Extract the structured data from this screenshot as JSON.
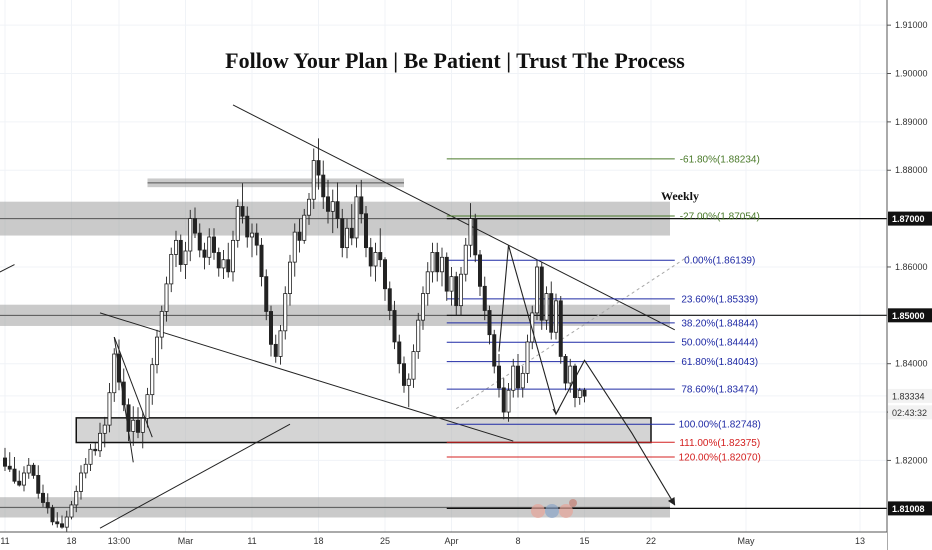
{
  "chart_data": {
    "type": "candlestick",
    "title": "Follow Your Plan | Be Patient | Trust The Process",
    "timeframe_label": "Weekly",
    "ylim": [
      1.8052,
      1.9152
    ],
    "y_ticks": [
      "1.91000",
      "1.90000",
      "1.89000",
      "1.88000",
      "1.87000",
      "1.86000",
      "1.85000",
      "1.84000",
      "1.83334",
      "1.83000",
      "1.82000",
      "1.81008"
    ],
    "price_badges": [
      {
        "label": "1.87000",
        "value": 1.87,
        "dark": true
      },
      {
        "label": "1.85000",
        "value": 1.85,
        "dark": true
      },
      {
        "label": "1.81008",
        "value": 1.81008,
        "dark": true
      },
      {
        "label": "1.83334",
        "value": 1.83334,
        "dark": false
      },
      {
        "label": "02:43:32",
        "value": 1.82994,
        "dark": false
      }
    ],
    "x_ticks": [
      {
        "label": "11",
        "t": 0
      },
      {
        "label": "18",
        "t": 7
      },
      {
        "label": "13:00",
        "t": 12
      },
      {
        "label": "Mar",
        "t": 19
      },
      {
        "label": "11",
        "t": 26
      },
      {
        "label": "18",
        "t": 33
      },
      {
        "label": "25",
        "t": 40
      },
      {
        "label": "Apr",
        "t": 47
      },
      {
        "label": "8",
        "t": 54
      },
      {
        "label": "15",
        "t": 61
      },
      {
        "label": "22",
        "t": 68
      },
      {
        "label": "May",
        "t": 78
      },
      {
        "label": "13",
        "t": 90
      }
    ],
    "x_range": [
      0,
      91
    ],
    "zones": [
      {
        "t0": -2,
        "t1": 70,
        "y0": 1.8735,
        "y1": 1.8665,
        "style": "gray"
      },
      {
        "t0": 15,
        "t1": 42,
        "y0": 1.8783,
        "y1": 1.8765,
        "style": "gray"
      },
      {
        "t0": -2,
        "t1": 70,
        "y0": 1.8522,
        "y1": 1.8478,
        "style": "gray"
      },
      {
        "t0": 7.5,
        "t1": 68,
        "y0": 1.8288,
        "y1": 1.8237,
        "style": "boxed"
      },
      {
        "t0": -2,
        "t1": 70,
        "y0": 1.8124,
        "y1": 1.8082,
        "style": "gray"
      }
    ],
    "fib_levels": [
      {
        "label": "-61.80%(1.88234)",
        "value": 1.88234,
        "color": "#4a7a2a"
      },
      {
        "label": "-27.00%(1.87054)",
        "value": 1.87054,
        "color": "#4a7a2a"
      },
      {
        "label": "0.00%(1.86139)",
        "value": 1.86139,
        "color": "#1f2aa5"
      },
      {
        "label": "23.60%(1.85339)",
        "value": 1.85339,
        "color": "#1f2aa5"
      },
      {
        "label": "38.20%(1.84844)",
        "value": 1.84844,
        "color": "#1f2aa5"
      },
      {
        "label": "50.00%(1.84444)",
        "value": 1.84444,
        "color": "#1f2aa5"
      },
      {
        "label": "61.80%(1.84043)",
        "value": 1.84043,
        "color": "#1f2aa5"
      },
      {
        "label": "78.60%(1.83474)",
        "value": 1.83474,
        "color": "#1f2aa5"
      },
      {
        "label": "100.00%(1.82748)",
        "value": 1.82748,
        "color": "#1f2aa5"
      },
      {
        "label": "111.00%(1.82375)",
        "value": 1.82375,
        "color": "#d42020"
      },
      {
        "label": "120.00%(1.82070)",
        "value": 1.8207,
        "color": "#d42020"
      }
    ],
    "fib_span": [
      46.5,
      70.5
    ],
    "lines": [
      {
        "t0": 24,
        "y0": 1.8935,
        "t1": 70.5,
        "y1": 1.847
      },
      {
        "t0": 10,
        "y0": 1.8505,
        "t1": 53.5,
        "y1": 1.824
      },
      {
        "t0": 10,
        "y0": 1.806,
        "t1": 30,
        "y1": 1.8275
      },
      {
        "t0": 11.5,
        "y0": 1.8455,
        "t1": 15.5,
        "y1": 1.8248
      },
      {
        "t0": 11.5,
        "y0": 1.8455,
        "t1": 13.5,
        "y1": 1.8196
      },
      {
        "t0": -2,
        "y0": 1.8575,
        "t1": 1,
        "y1": 1.8605
      }
    ],
    "dashed_lines": [
      {
        "t0": 47.5,
        "y0": 1.8307,
        "t1": 72,
        "y1": 1.8623
      }
    ],
    "projection": [
      {
        "t": 52,
        "y": 1.8425
      },
      {
        "t": 53,
        "y": 1.8645
      },
      {
        "t": 58,
        "y": 1.8296
      },
      {
        "t": 61,
        "y": 1.8407
      },
      {
        "t": 66,
        "y": 1.8256
      },
      {
        "t": 70.5,
        "y": 1.8108
      }
    ],
    "candles": [
      [
        0.0,
        1.8205,
        1.8226,
        1.8178,
        1.8188
      ],
      [
        0.5,
        1.8188,
        1.8217,
        1.8176,
        1.8182
      ],
      [
        1.0,
        1.8182,
        1.8207,
        1.8152,
        1.8157
      ],
      [
        1.5,
        1.8157,
        1.8179,
        1.8146,
        1.8149
      ],
      [
        2.0,
        1.8149,
        1.8188,
        1.8136,
        1.8174
      ],
      [
        2.5,
        1.8174,
        1.8205,
        1.8162,
        1.819
      ],
      [
        3.0,
        1.819,
        1.8195,
        1.8162,
        1.8169
      ],
      [
        3.5,
        1.8169,
        1.819,
        1.8121,
        1.8132
      ],
      [
        4.0,
        1.8132,
        1.815,
        1.8104,
        1.8113
      ],
      [
        4.5,
        1.8113,
        1.8132,
        1.809,
        1.8102
      ],
      [
        5.0,
        1.8102,
        1.8108,
        1.8066,
        1.8073
      ],
      [
        5.5,
        1.8073,
        1.8093,
        1.8061,
        1.8069
      ],
      [
        6.0,
        1.8069,
        1.8086,
        1.8059,
        1.8062
      ],
      [
        6.5,
        1.8062,
        1.8096,
        1.8053,
        1.8083
      ],
      [
        7.0,
        1.8083,
        1.8116,
        1.8078,
        1.8108
      ],
      [
        7.5,
        1.8108,
        1.8148,
        1.8093,
        1.8136
      ],
      [
        8.0,
        1.8136,
        1.819,
        1.8119,
        1.8174
      ],
      [
        8.5,
        1.8174,
        1.8205,
        1.8163,
        1.8192
      ],
      [
        9.0,
        1.8192,
        1.8234,
        1.8178,
        1.8223
      ],
      [
        9.5,
        1.8223,
        1.8237,
        1.821,
        1.822
      ],
      [
        10.0,
        1.822,
        1.8278,
        1.8207,
        1.8256
      ],
      [
        10.5,
        1.8256,
        1.829,
        1.8227,
        1.8273
      ],
      [
        11.0,
        1.8273,
        1.836,
        1.8258,
        1.834
      ],
      [
        11.5,
        1.834,
        1.8432,
        1.8321,
        1.842
      ],
      [
        12.0,
        1.842,
        1.845,
        1.8345,
        1.8362
      ],
      [
        12.5,
        1.8362,
        1.839,
        1.8302,
        1.8315
      ],
      [
        13.0,
        1.8315,
        1.8328,
        1.824,
        1.826
      ],
      [
        13.5,
        1.826,
        1.8312,
        1.823,
        1.8283
      ],
      [
        14.0,
        1.8283,
        1.831,
        1.8246,
        1.8258
      ],
      [
        14.5,
        1.8258,
        1.83,
        1.8225,
        1.8287
      ],
      [
        15.0,
        1.8287,
        1.835,
        1.8268,
        1.8336
      ],
      [
        15.5,
        1.8336,
        1.8412,
        1.8315,
        1.8398
      ],
      [
        16.0,
        1.8398,
        1.847,
        1.838,
        1.8455
      ],
      [
        16.5,
        1.8455,
        1.852,
        1.843,
        1.8508
      ],
      [
        17.0,
        1.8508,
        1.858,
        1.8487,
        1.8565
      ],
      [
        17.5,
        1.8565,
        1.864,
        1.8548,
        1.8626
      ],
      [
        18.0,
        1.8626,
        1.8675,
        1.86,
        1.8655
      ],
      [
        18.5,
        1.8655,
        1.8667,
        1.859,
        1.8605
      ],
      [
        19.0,
        1.8605,
        1.8652,
        1.8575,
        1.8633
      ],
      [
        19.5,
        1.8633,
        1.8718,
        1.8612,
        1.87
      ],
      [
        20.0,
        1.87,
        1.8723,
        1.866,
        1.867
      ],
      [
        20.5,
        1.867,
        1.869,
        1.862,
        1.8635
      ],
      [
        21.0,
        1.8635,
        1.865,
        1.8595,
        1.862
      ],
      [
        21.5,
        1.862,
        1.868,
        1.8604,
        1.8662
      ],
      [
        22.0,
        1.8662,
        1.868,
        1.8615,
        1.863
      ],
      [
        22.5,
        1.863,
        1.864,
        1.858,
        1.8598
      ],
      [
        23.0,
        1.8598,
        1.8635,
        1.8575,
        1.8615
      ],
      [
        23.5,
        1.8615,
        1.865,
        1.8578,
        1.859
      ],
      [
        24.0,
        1.859,
        1.8675,
        1.857,
        1.8655
      ],
      [
        24.5,
        1.8655,
        1.874,
        1.864,
        1.8725
      ],
      [
        25.0,
        1.8725,
        1.8773,
        1.869,
        1.8705
      ],
      [
        25.5,
        1.8705,
        1.8725,
        1.864,
        1.8662
      ],
      [
        26.0,
        1.8662,
        1.869,
        1.862,
        1.867
      ],
      [
        26.5,
        1.867,
        1.869,
        1.8624,
        1.8645
      ],
      [
        27.0,
        1.8645,
        1.866,
        1.856,
        1.858
      ],
      [
        27.5,
        1.858,
        1.8595,
        1.849,
        1.8508
      ],
      [
        28.0,
        1.8508,
        1.852,
        1.8415,
        1.844
      ],
      [
        28.5,
        1.844,
        1.846,
        1.8402,
        1.8415
      ],
      [
        29.0,
        1.8415,
        1.848,
        1.8398,
        1.8468
      ],
      [
        29.5,
        1.8468,
        1.856,
        1.845,
        1.8545
      ],
      [
        30.0,
        1.8545,
        1.8625,
        1.852,
        1.861
      ],
      [
        30.5,
        1.861,
        1.869,
        1.858,
        1.8672
      ],
      [
        31.0,
        1.8672,
        1.87,
        1.863,
        1.8655
      ],
      [
        31.5,
        1.8655,
        1.872,
        1.8648,
        1.8707
      ],
      [
        32.0,
        1.8707,
        1.8753,
        1.8687,
        1.874
      ],
      [
        32.5,
        1.874,
        1.8845,
        1.872,
        1.882
      ],
      [
        33.0,
        1.882,
        1.8866,
        1.876,
        1.879
      ],
      [
        33.5,
        1.879,
        1.882,
        1.872,
        1.8745
      ],
      [
        34.0,
        1.8745,
        1.878,
        1.869,
        1.8715
      ],
      [
        34.5,
        1.8715,
        1.876,
        1.867,
        1.8735
      ],
      [
        35.0,
        1.8735,
        1.8775,
        1.868,
        1.87
      ],
      [
        35.5,
        1.87,
        1.872,
        1.862,
        1.864
      ],
      [
        36.0,
        1.864,
        1.87,
        1.8618,
        1.868
      ],
      [
        36.5,
        1.868,
        1.873,
        1.8645,
        1.866
      ],
      [
        37.0,
        1.866,
        1.877,
        1.864,
        1.8745
      ],
      [
        37.5,
        1.8745,
        1.878,
        1.869,
        1.871
      ],
      [
        38.0,
        1.871,
        1.8726,
        1.862,
        1.864
      ],
      [
        38.5,
        1.864,
        1.866,
        1.858,
        1.8602
      ],
      [
        39.0,
        1.8602,
        1.865,
        1.857,
        1.863
      ],
      [
        39.5,
        1.863,
        1.868,
        1.86,
        1.8615
      ],
      [
        40.0,
        1.8615,
        1.862,
        1.853,
        1.8555
      ],
      [
        40.5,
        1.8555,
        1.857,
        1.849,
        1.851
      ],
      [
        41.0,
        1.851,
        1.853,
        1.843,
        1.8445
      ],
      [
        41.5,
        1.8445,
        1.846,
        1.838,
        1.84
      ],
      [
        42.0,
        1.84,
        1.8415,
        1.834,
        1.8355
      ],
      [
        42.5,
        1.8355,
        1.838,
        1.831,
        1.8368
      ],
      [
        43.0,
        1.8368,
        1.844,
        1.835,
        1.8425
      ],
      [
        43.5,
        1.8425,
        1.8505,
        1.841,
        1.849
      ],
      [
        44.0,
        1.849,
        1.856,
        1.847,
        1.8545
      ],
      [
        44.5,
        1.8545,
        1.861,
        1.852,
        1.859
      ],
      [
        45.0,
        1.859,
        1.865,
        1.8568,
        1.863
      ],
      [
        45.5,
        1.863,
        1.865,
        1.857,
        1.859
      ],
      [
        46.0,
        1.859,
        1.864,
        1.856,
        1.862
      ],
      [
        46.5,
        1.862,
        1.863,
        1.853,
        1.855
      ],
      [
        47.0,
        1.855,
        1.86,
        1.852,
        1.858
      ],
      [
        47.5,
        1.858,
        1.859,
        1.85,
        1.852
      ],
      [
        48.0,
        1.852,
        1.86,
        1.85,
        1.8585
      ],
      [
        48.5,
        1.8585,
        1.866,
        1.857,
        1.8645
      ],
      [
        49.0,
        1.8645,
        1.8732,
        1.862,
        1.87
      ],
      [
        49.5,
        1.87,
        1.871,
        1.861,
        1.8625
      ],
      [
        50.0,
        1.8625,
        1.8635,
        1.854,
        1.856
      ],
      [
        50.5,
        1.856,
        1.858,
        1.849,
        1.851
      ],
      [
        51.0,
        1.851,
        1.852,
        1.844,
        1.846
      ],
      [
        51.5,
        1.846,
        1.847,
        1.838,
        1.8395
      ],
      [
        52.0,
        1.8395,
        1.842,
        1.833,
        1.835
      ],
      [
        52.5,
        1.835,
        1.837,
        1.8285,
        1.83
      ],
      [
        53.0,
        1.83,
        1.836,
        1.828,
        1.8345
      ],
      [
        53.5,
        1.8345,
        1.841,
        1.833,
        1.8395
      ],
      [
        54.0,
        1.8395,
        1.842,
        1.833,
        1.835
      ],
      [
        54.5,
        1.835,
        1.8395,
        1.833,
        1.838
      ],
      [
        55.0,
        1.838,
        1.846,
        1.836,
        1.8445
      ],
      [
        55.5,
        1.8445,
        1.852,
        1.843,
        1.8505
      ],
      [
        56.0,
        1.8505,
        1.8615,
        1.849,
        1.86
      ],
      [
        56.5,
        1.86,
        1.861,
        1.847,
        1.849
      ],
      [
        57.0,
        1.849,
        1.856,
        1.847,
        1.8545
      ],
      [
        57.5,
        1.8545,
        1.857,
        1.845,
        1.8465
      ],
      [
        58.0,
        1.8465,
        1.8545,
        1.845,
        1.853
      ],
      [
        58.5,
        1.853,
        1.854,
        1.84,
        1.8415
      ],
      [
        59.0,
        1.8415,
        1.842,
        1.8345,
        1.836
      ],
      [
        59.5,
        1.836,
        1.841,
        1.834,
        1.8395
      ],
      [
        60.0,
        1.8395,
        1.84,
        1.831,
        1.833
      ],
      [
        60.5,
        1.833,
        1.835,
        1.8315,
        1.8345
      ],
      [
        61.0,
        1.8345,
        1.835,
        1.832,
        1.8333
      ]
    ]
  }
}
